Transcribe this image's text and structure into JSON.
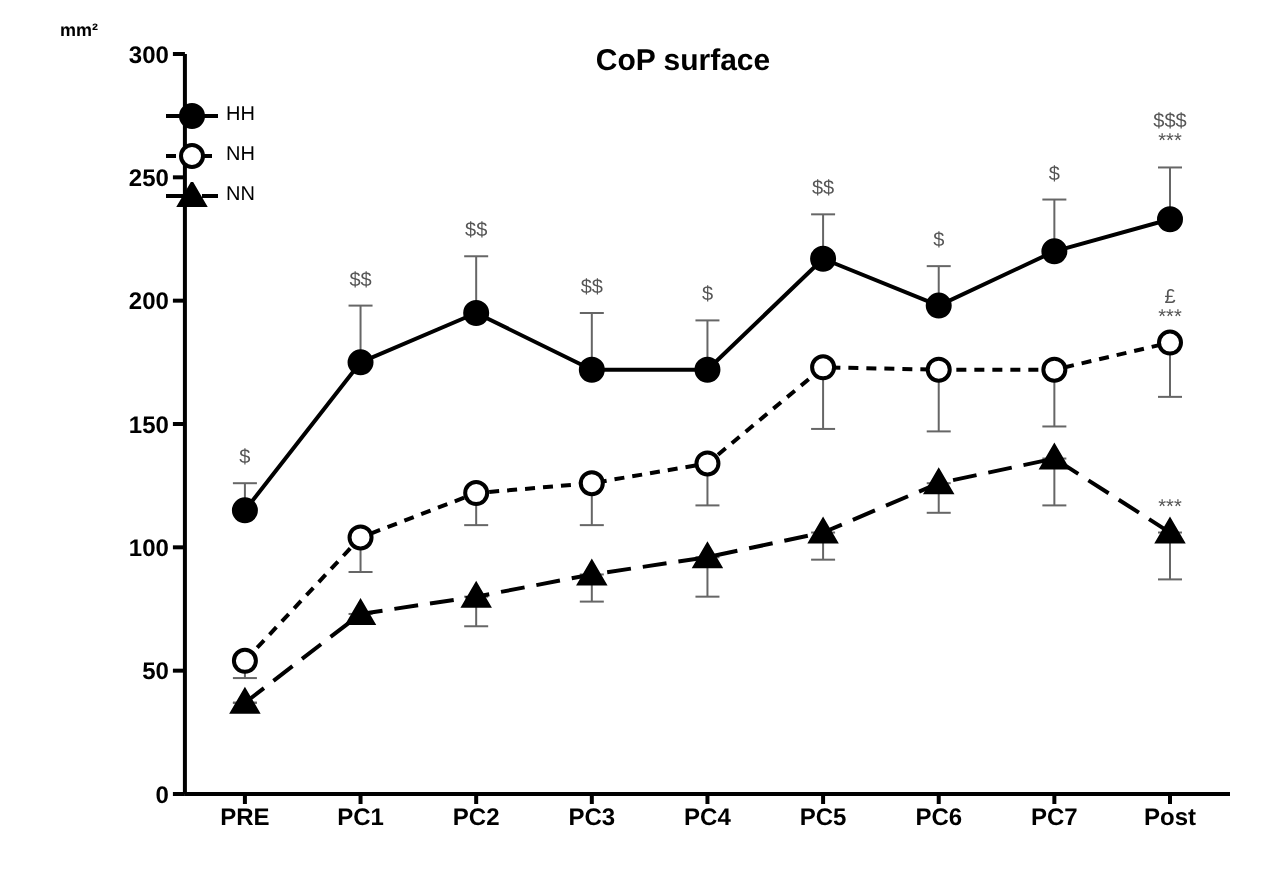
{
  "chart_data": {
    "type": "line",
    "title": "CoP surface",
    "ylabel": "mm²",
    "categories": [
      "PRE",
      "PC1",
      "PC2",
      "PC3",
      "PC4",
      "PC5",
      "PC6",
      "PC7",
      "Post"
    ],
    "ylim": [
      0,
      300
    ],
    "yticks": [
      0,
      50,
      100,
      150,
      200,
      250,
      300
    ],
    "grid": false,
    "legend": "top left",
    "series": [
      {
        "name": "HH",
        "color": "#000000",
        "marker": "circle",
        "line_style": "solid",
        "values": [
          115,
          175,
          195,
          172,
          172,
          217,
          198,
          220,
          233
        ],
        "errors": [
          [
            115,
            126
          ],
          [
            175,
            198
          ],
          [
            195,
            218
          ],
          [
            172,
            195
          ],
          [
            172,
            192
          ],
          [
            217,
            235
          ],
          [
            198,
            214
          ],
          [
            220,
            241
          ],
          [
            233,
            254
          ]
        ]
      },
      {
        "name": "NH",
        "color": "#000000",
        "marker": "circle",
        "line_style": "dashed",
        "values": [
          54,
          104,
          122,
          126,
          134,
          173,
          172,
          172,
          183
        ],
        "errors": [
          [
            47,
            54
          ],
          [
            90,
            104
          ],
          [
            109,
            122
          ],
          [
            109,
            126
          ],
          [
            117,
            134
          ],
          [
            148,
            173
          ],
          [
            147,
            172
          ],
          [
            149,
            172
          ],
          [
            161,
            183
          ]
        ]
      },
      {
        "name": "NN",
        "color": "#000000",
        "marker": "triangle",
        "line_style": "dashed",
        "values": [
          37,
          73,
          80,
          89,
          96,
          106,
          126,
          136,
          106
        ],
        "errors": [
          null,
          [
            69,
            73
          ],
          [
            68,
            80
          ],
          [
            78,
            89
          ],
          [
            80,
            96
          ],
          [
            95,
            106
          ],
          [
            114,
            126
          ],
          [
            117,
            136
          ],
          [
            87,
            106
          ]
        ]
      }
    ],
    "annotations": [
      {
        "text": "$",
        "x": "PRE",
        "y": 126
      },
      {
        "text": "$$",
        "x": "PC1",
        "y": 198
      },
      {
        "text": "$$",
        "x": "PC2",
        "y": 218
      },
      {
        "text": "$$",
        "x": "PC3",
        "y": 195
      },
      {
        "text": "$",
        "x": "PC4",
        "y": 192
      },
      {
        "text": "$$",
        "x": "PC5",
        "y": 235
      },
      {
        "text": "$",
        "x": "PC6",
        "y": 214
      },
      {
        "text": "$",
        "x": "PC7",
        "y": 241
      },
      {
        "text": "***",
        "x": "Post",
        "y": 254
      },
      {
        "text": "$$$",
        "x": "Post",
        "y": 254
      },
      {
        "text": "***",
        "x": "Post",
        "y": 183
      },
      {
        "text": "£",
        "x": "Post",
        "y": 183
      },
      {
        "text": "***",
        "x": "Post",
        "y": 106
      }
    ]
  }
}
